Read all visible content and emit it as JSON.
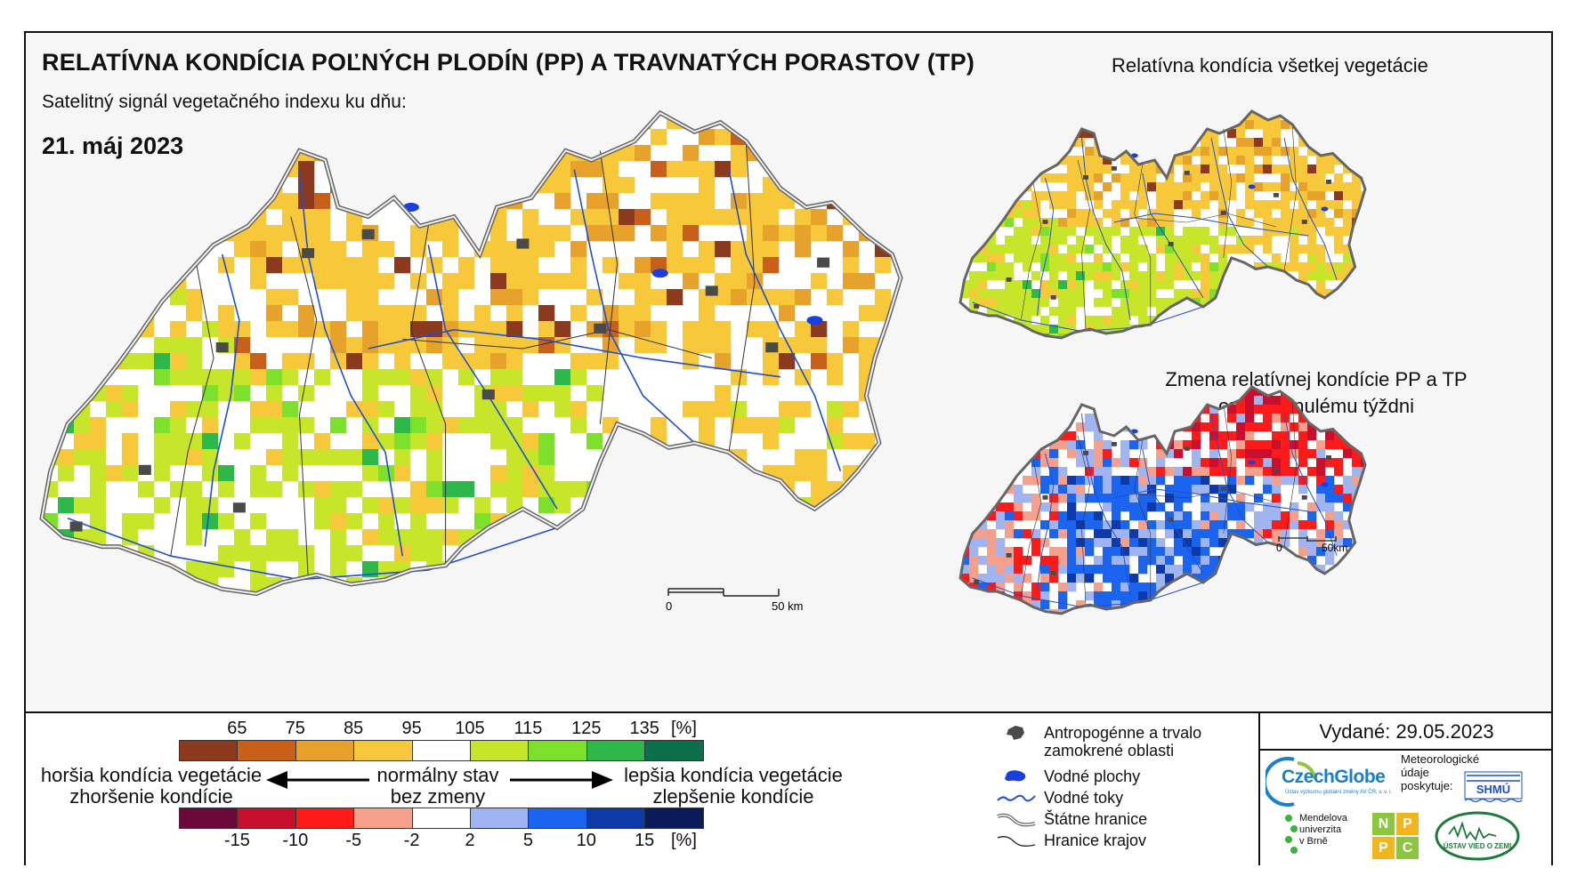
{
  "header": {
    "title": "RELATÍVNA KONDÍCIA POĽNÝCH PLODÍN (PP) A TRAVNATÝCH PORASTOV (TP)",
    "subtitle": "Satelitný signál vegetačného indexu ku dňu:",
    "date": "21. máj 2023"
  },
  "insets": {
    "all_vegetation_title": "Relatívna kondícia všetkej vegetácie",
    "change_title_line1": "Zmena relatívnej kondície PP a TP",
    "change_title_line2": "oproti minulému týždni"
  },
  "scalebars": {
    "main": {
      "start": "0",
      "end": "50 km"
    },
    "inset": {
      "start": "0",
      "end": "50km"
    }
  },
  "legend": {
    "condition_scale": {
      "ticks": [
        "65",
        "75",
        "85",
        "95",
        "105",
        "115",
        "125",
        "135"
      ],
      "unit": "[%]",
      "colors": [
        "#8b3a1e",
        "#c8601a",
        "#e6a22a",
        "#f7c83a",
        "#ffffff",
        "#c7e62a",
        "#7de02a",
        "#2eb84a",
        "#0d6e4a"
      ]
    },
    "change_scale": {
      "ticks": [
        "-15",
        "-10",
        "-5",
        "-2",
        "2",
        "5",
        "10",
        "15"
      ],
      "unit": "[%]",
      "colors": [
        "#6b0a3a",
        "#c8102e",
        "#ff1a1a",
        "#f4a08c",
        "#ffffff",
        "#9fb4f0",
        "#1a64f0",
        "#0d3aa8",
        "#0a1a5a"
      ]
    },
    "worse_line1": "horšia kondícia vegetácie",
    "worse_line2": "zhoršenie kondície",
    "normal_line1": "normálny stav",
    "normal_line2": "bez zmeny",
    "better_line1": "lepšia kondícia vegetácie",
    "better_line2": "zlepšenie kondície"
  },
  "symbols": [
    {
      "icon": "urban-area-icon",
      "label": "Antropogénne a trvalo zamokrené oblasti"
    },
    {
      "icon": "water-body-icon",
      "label": "Vodné plochy"
    },
    {
      "icon": "river-icon",
      "label": "Vodné toky"
    },
    {
      "icon": "state-border-icon",
      "label": "Štátne hranice"
    },
    {
      "icon": "region-border-icon",
      "label": "Hranice krajov"
    }
  ],
  "info": {
    "issued": "Vydané: 29.05.2023",
    "czechglobe": "CzechGlobe",
    "czechglobe_sub": "Ústav výzkumu globální změny AV ČR, v. v. i.",
    "meteo_line1": "Meteorologické",
    "meteo_line2": "údaje",
    "meteo_line3": "poskytuje:",
    "shmu": "SHMÚ",
    "mendel_line1": "Mendelova",
    "mendel_line2": "univerzita",
    "mendel_line3": "v Brně",
    "nppc_letters": [
      "N",
      "P",
      "P",
      "C"
    ],
    "uvz": "ÚSTAV VIED O ZEMI"
  },
  "colors": {
    "river": "#1f4fd0",
    "water": "#1a3fe0",
    "urban": "#4a4a4a",
    "border": "#555555"
  }
}
